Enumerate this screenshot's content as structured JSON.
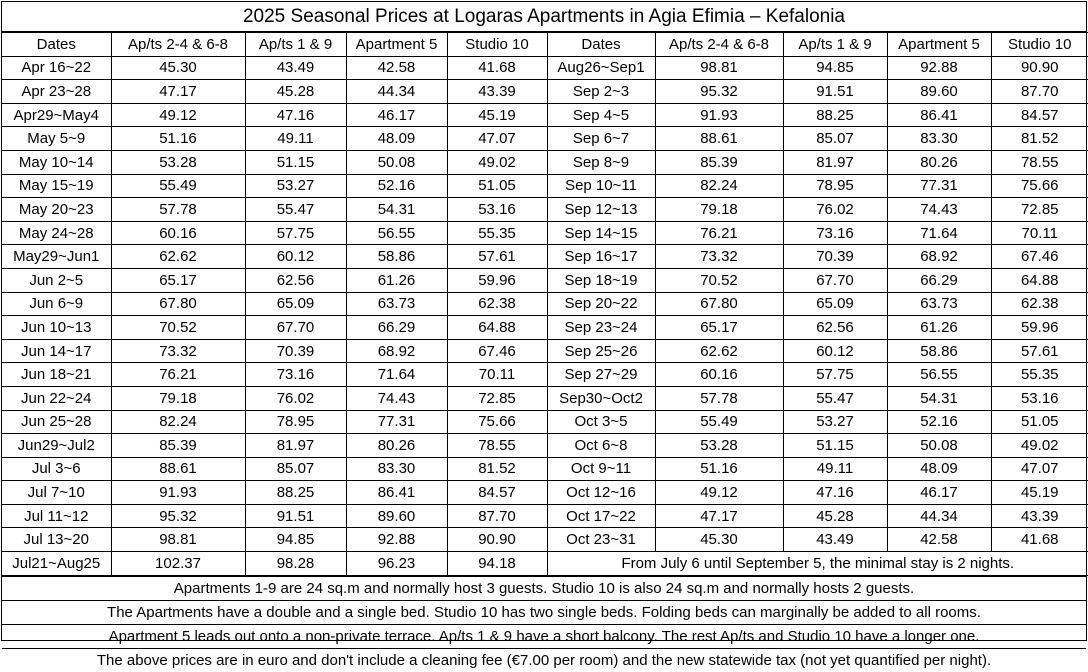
{
  "title": "2025 Seasonal Prices at Logaras Apartments in Agia Efimia – Kefalonia",
  "headers": [
    "Dates",
    "Ap/ts 2-4 & 6-8",
    "Ap/ts 1 & 9",
    "Apartment 5",
    "Studio 10"
  ],
  "left_rows": [
    [
      "Apr 16~22",
      "45.30",
      "43.49",
      "42.58",
      "41.68"
    ],
    [
      "Apr 23~28",
      "47.17",
      "45.28",
      "44.34",
      "43.39"
    ],
    [
      "Apr29~May4",
      "49.12",
      "47.16",
      "46.17",
      "45.19"
    ],
    [
      "May 5~9",
      "51.16",
      "49.11",
      "48.09",
      "47.07"
    ],
    [
      "May 10~14",
      "53.28",
      "51.15",
      "50.08",
      "49.02"
    ],
    [
      "May 15~19",
      "55.49",
      "53.27",
      "52.16",
      "51.05"
    ],
    [
      "May 20~23",
      "57.78",
      "55.47",
      "54.31",
      "53.16"
    ],
    [
      "May 24~28",
      "60.16",
      "57.75",
      "56.55",
      "55.35"
    ],
    [
      "May29~Jun1",
      "62.62",
      "60.12",
      "58.86",
      "57.61"
    ],
    [
      "Jun 2~5",
      "65.17",
      "62.56",
      "61.26",
      "59.96"
    ],
    [
      "Jun 6~9",
      "67.80",
      "65.09",
      "63.73",
      "62.38"
    ],
    [
      "Jun 10~13",
      "70.52",
      "67.70",
      "66.29",
      "64.88"
    ],
    [
      "Jun 14~17",
      "73.32",
      "70.39",
      "68.92",
      "67.46"
    ],
    [
      "Jun 18~21",
      "76.21",
      "73.16",
      "71.64",
      "70.11"
    ],
    [
      "Jun 22~24",
      "79.18",
      "76.02",
      "74.43",
      "72.85"
    ],
    [
      "Jun 25~28",
      "82.24",
      "78.95",
      "77.31",
      "75.66"
    ],
    [
      "Jun29~Jul2",
      "85.39",
      "81.97",
      "80.26",
      "78.55"
    ],
    [
      "Jul 3~6",
      "88.61",
      "85.07",
      "83.30",
      "81.52"
    ],
    [
      "Jul 7~10",
      "91.93",
      "88.25",
      "86.41",
      "84.57"
    ],
    [
      "Jul 11~12",
      "95.32",
      "91.51",
      "89.60",
      "87.70"
    ],
    [
      "Jul 13~20",
      "98.81",
      "94.85",
      "92.88",
      "90.90"
    ],
    [
      "Jul21~Aug25",
      "102.37",
      "98.28",
      "96.23",
      "94.18"
    ]
  ],
  "right_rows": [
    [
      "Aug26~Sep1",
      "98.81",
      "94.85",
      "92.88",
      "90.90"
    ],
    [
      "Sep 2~3",
      "95.32",
      "91.51",
      "89.60",
      "87.70"
    ],
    [
      "Sep 4~5",
      "91.93",
      "88.25",
      "86.41",
      "84.57"
    ],
    [
      "Sep 6~7",
      "88.61",
      "85.07",
      "83.30",
      "81.52"
    ],
    [
      "Sep 8~9",
      "85.39",
      "81.97",
      "80.26",
      "78.55"
    ],
    [
      "Sep 10~11",
      "82.24",
      "78.95",
      "77.31",
      "75.66"
    ],
    [
      "Sep 12~13",
      "79.18",
      "76.02",
      "74.43",
      "72.85"
    ],
    [
      "Sep 14~15",
      "76.21",
      "73.16",
      "71.64",
      "70.11"
    ],
    [
      "Sep 16~17",
      "73.32",
      "70.39",
      "68.92",
      "67.46"
    ],
    [
      "Sep 18~19",
      "70.52",
      "67.70",
      "66.29",
      "64.88"
    ],
    [
      "Sep 20~22",
      "67.80",
      "65.09",
      "63.73",
      "62.38"
    ],
    [
      "Sep 23~24",
      "65.17",
      "62.56",
      "61.26",
      "59.96"
    ],
    [
      "Sep 25~26",
      "62.62",
      "60.12",
      "58.86",
      "57.61"
    ],
    [
      "Sep 27~29",
      "60.16",
      "57.75",
      "56.55",
      "55.35"
    ],
    [
      "Sep30~Oct2",
      "57.78",
      "55.47",
      "54.31",
      "53.16"
    ],
    [
      "Oct 3~5",
      "55.49",
      "53.27",
      "52.16",
      "51.05"
    ],
    [
      "Oct 6~8",
      "53.28",
      "51.15",
      "50.08",
      "49.02"
    ],
    [
      "Oct 9~11",
      "51.16",
      "49.11",
      "48.09",
      "47.07"
    ],
    [
      "Oct 12~16",
      "49.12",
      "47.16",
      "46.17",
      "45.19"
    ],
    [
      "Oct 17~22",
      "47.17",
      "45.28",
      "44.34",
      "43.39"
    ],
    [
      "Oct 23~31",
      "45.30",
      "43.49",
      "42.58",
      "41.68"
    ]
  ],
  "min_stay_note": "From July 6 until September 5, the minimal stay is 2 nights.",
  "notes": [
    "Apartments 1-9 are 24 sq.m and normally host 3 guests. Studio 10 is also 24 sq.m and normally hosts 2 guests.",
    "The Apartments have a double and a single bed. Studio 10 has two single beds. Folding beds can marginally be added to all rooms.",
    "Apartment 5 leads out onto a non-private terrace. Ap/ts 1 & 9 have a short balcony. The rest Ap/ts and Studio 10 have a longer one.",
    "The above prices are in euro and don't include a cleaning fee (€7.00 per room) and the new statewide tax (not yet quantified per night)."
  ]
}
